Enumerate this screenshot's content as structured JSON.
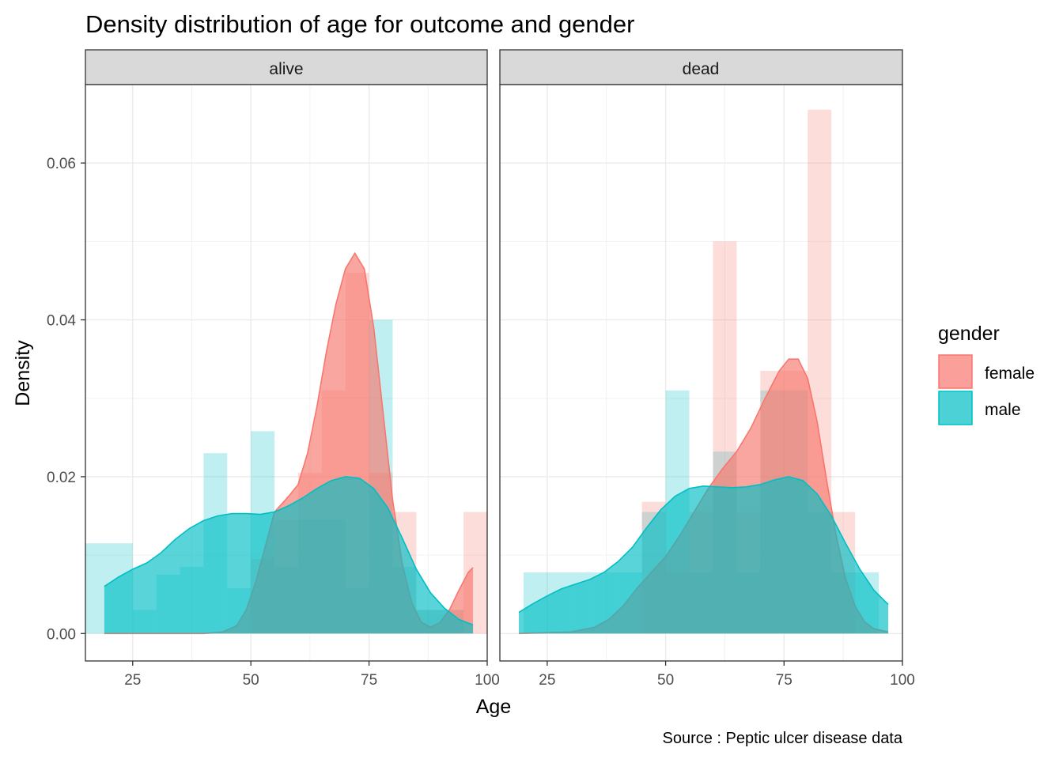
{
  "chart_data": {
    "type": "histogram+density",
    "title": "Density distribution of age for outcome and gender",
    "caption": "Source : Peptic ulcer disease data",
    "xlabel": "Age",
    "ylabel": "Density",
    "xlim": [
      15,
      100
    ],
    "ylim": [
      -0.0035,
      0.07
    ],
    "x_ticks": [
      25,
      50,
      75,
      100
    ],
    "y_ticks": [
      0.0,
      0.02,
      0.04,
      0.06
    ],
    "y_tick_labels": [
      "0.00",
      "0.02",
      "0.04",
      "0.06"
    ],
    "grid": true,
    "bin_width": 5,
    "legend": {
      "title": "gender",
      "position": "right",
      "entries": [
        {
          "label": "female",
          "color": "#F8766D"
        },
        {
          "label": "male",
          "color": "#00BFC4"
        }
      ]
    },
    "colors": {
      "female": "#F8766D",
      "male": "#00BFC4"
    },
    "panels": [
      {
        "label": "alive",
        "histogram": {
          "female": [
            [
              52.5,
              0.0095
            ],
            [
              57.5,
              0.0145
            ],
            [
              62.5,
              0.0205
            ],
            [
              67.5,
              0.031
            ],
            [
              72.5,
              0.046
            ],
            [
              77.5,
              0.0205
            ],
            [
              82.5,
              0.0155
            ],
            [
              87.5,
              0.003
            ],
            [
              92.5,
              0.003
            ],
            [
              97.5,
              0.0155
            ]
          ],
          "male": [
            [
              17.5,
              0.0115
            ],
            [
              22.5,
              0.0115
            ],
            [
              27.5,
              0.003
            ],
            [
              32.5,
              0.0075
            ],
            [
              37.5,
              0.0085
            ],
            [
              42.5,
              0.023
            ],
            [
              47.5,
              0.0058
            ],
            [
              52.5,
              0.0258
            ],
            [
              57.5,
              0.0085
            ],
            [
              62.5,
              0.0145
            ],
            [
              67.5,
              0.0145
            ],
            [
              72.5,
              0.0058
            ],
            [
              77.5,
              0.04
            ],
            [
              82.5,
              0.0085
            ],
            [
              87.5,
              0.003
            ],
            [
              92.5,
              0.003
            ]
          ]
        },
        "density": {
          "female": [
            [
              19,
              0
            ],
            [
              40,
              0
            ],
            [
              44,
              0.0002
            ],
            [
              47,
              0.001
            ],
            [
              49,
              0.003
            ],
            [
              51,
              0.0065
            ],
            [
              53,
              0.011
            ],
            [
              55,
              0.0155
            ],
            [
              58,
              0.0175
            ],
            [
              60,
              0.019
            ],
            [
              62,
              0.023
            ],
            [
              64,
              0.029
            ],
            [
              66,
              0.036
            ],
            [
              68,
              0.042
            ],
            [
              70,
              0.0465
            ],
            [
              72,
              0.0485
            ],
            [
              74,
              0.0465
            ],
            [
              76,
              0.039
            ],
            [
              78,
              0.028
            ],
            [
              80,
              0.017
            ],
            [
              82,
              0.009
            ],
            [
              84,
              0.004
            ],
            [
              86,
              0.0015
            ],
            [
              88,
              0.0008
            ],
            [
              90,
              0.0014
            ],
            [
              92,
              0.003
            ],
            [
              94,
              0.0055
            ],
            [
              96,
              0.0078
            ],
            [
              97,
              0.0084
            ]
          ],
          "male": [
            [
              19,
              0.006
            ],
            [
              22,
              0.0072
            ],
            [
              25,
              0.0082
            ],
            [
              28,
              0.009
            ],
            [
              31,
              0.0103
            ],
            [
              34,
              0.012
            ],
            [
              37,
              0.0134
            ],
            [
              40,
              0.0144
            ],
            [
              43,
              0.015
            ],
            [
              46,
              0.0153
            ],
            [
              49,
              0.0153
            ],
            [
              52,
              0.0152
            ],
            [
              55,
              0.0155
            ],
            [
              58,
              0.0163
            ],
            [
              61,
              0.0173
            ],
            [
              64,
              0.0185
            ],
            [
              67,
              0.0195
            ],
            [
              70,
              0.02
            ],
            [
              73,
              0.0198
            ],
            [
              76,
              0.0185
            ],
            [
              79,
              0.016
            ],
            [
              82,
              0.0122
            ],
            [
              85,
              0.0082
            ],
            [
              88,
              0.0052
            ],
            [
              91,
              0.0032
            ],
            [
              94,
              0.0018
            ],
            [
              97,
              0.0011
            ]
          ]
        }
      },
      {
        "label": "dead",
        "histogram": {
          "female": [
            [
              47.5,
              0.0168
            ],
            [
              52.5,
              0.0078
            ],
            [
              57.5,
              0.0155
            ],
            [
              62.5,
              0.05
            ],
            [
              67.5,
              0.0155
            ],
            [
              72.5,
              0.0335
            ],
            [
              77.5,
              0.0335
            ],
            [
              82.5,
              0.0668
            ],
            [
              87.5,
              0.0155
            ]
          ],
          "male": [
            [
              22.5,
              0.0078
            ],
            [
              27.5,
              0.0078
            ],
            [
              32.5,
              0.0078
            ],
            [
              37.5,
              0.0078
            ],
            [
              42.5,
              0.0078
            ],
            [
              47.5,
              0.0155
            ],
            [
              52.5,
              0.031
            ],
            [
              57.5,
              0.0078
            ],
            [
              62.5,
              0.0232
            ],
            [
              67.5,
              0.0078
            ],
            [
              72.5,
              0.031
            ],
            [
              77.5,
              0.031
            ],
            [
              82.5,
              0.0155
            ],
            [
              87.5,
              0.0078
            ],
            [
              92.5,
              0.0078
            ]
          ]
        },
        "density": {
          "female": [
            [
              19,
              0
            ],
            [
              30,
              0.0002
            ],
            [
              35,
              0.0008
            ],
            [
              38,
              0.0018
            ],
            [
              41,
              0.0035
            ],
            [
              44,
              0.0058
            ],
            [
              47,
              0.0078
            ],
            [
              50,
              0.0098
            ],
            [
              53,
              0.0125
            ],
            [
              56,
              0.0155
            ],
            [
              59,
              0.0185
            ],
            [
              62,
              0.021
            ],
            [
              65,
              0.0232
            ],
            [
              68,
              0.0262
            ],
            [
              71,
              0.03
            ],
            [
              74,
              0.0335
            ],
            [
              76,
              0.035
            ],
            [
              78,
              0.035
            ],
            [
              80,
              0.0325
            ],
            [
              82,
              0.027
            ],
            [
              84,
              0.0195
            ],
            [
              86,
              0.0125
            ],
            [
              88,
              0.007
            ],
            [
              90,
              0.0035
            ],
            [
              92,
              0.0015
            ],
            [
              94,
              0.0006
            ],
            [
              97,
              0.0002
            ]
          ],
          "male": [
            [
              19,
              0.0027
            ],
            [
              22,
              0.0038
            ],
            [
              25,
              0.0048
            ],
            [
              28,
              0.0057
            ],
            [
              31,
              0.0063
            ],
            [
              34,
              0.0069
            ],
            [
              37,
              0.0078
            ],
            [
              40,
              0.0092
            ],
            [
              43,
              0.011
            ],
            [
              46,
              0.0135
            ],
            [
              49,
              0.0158
            ],
            [
              52,
              0.0175
            ],
            [
              55,
              0.0185
            ],
            [
              58,
              0.0188
            ],
            [
              61,
              0.0187
            ],
            [
              64,
              0.0186
            ],
            [
              67,
              0.0187
            ],
            [
              70,
              0.019
            ],
            [
              73,
              0.0196
            ],
            [
              76,
              0.02
            ],
            [
              79,
              0.0195
            ],
            [
              82,
              0.0178
            ],
            [
              85,
              0.015
            ],
            [
              88,
              0.0115
            ],
            [
              91,
              0.0082
            ],
            [
              94,
              0.0055
            ],
            [
              97,
              0.0037
            ]
          ]
        }
      }
    ]
  }
}
